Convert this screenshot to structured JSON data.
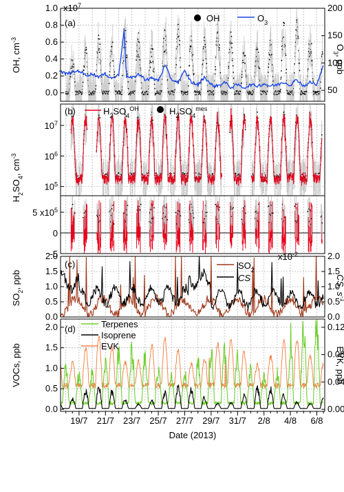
{
  "chart_data": [
    {
      "id": "a",
      "type": "line",
      "panel_label": "(a)",
      "ylabel_left": "OH, cm",
      "ylabel_left_exp": "-3",
      "ylabel_right": "O",
      "ylabel_right_sub": "3",
      "ylabel_right_unit": ", ppb",
      "multiplier_left": "x10",
      "multiplier_left_exp": "7",
      "ylim_left": [
        -0.1,
        1.0
      ],
      "ylim_right": [
        30,
        200
      ],
      "yticks_left": [
        "0.0",
        "0.2",
        "0.4",
        "0.6",
        "0.8",
        "1.0"
      ],
      "yticks_right": [
        "50",
        "100",
        "150",
        "200"
      ],
      "legend": [
        {
          "name": "OH",
          "marker": "dot",
          "color": "#000000"
        },
        {
          "name": "O",
          "sub": "3",
          "marker": "line",
          "color": "#1a47e6"
        }
      ],
      "series": [
        {
          "name": "OH",
          "axis": "left",
          "style": "dots",
          "color": "#000000",
          "peaks": [
            0.35,
            0.45,
            0.6,
            0.55,
            0.65,
            0.6,
            0.5,
            0.65,
            0.7,
            0.6,
            0.55,
            0.7,
            0.6,
            0.45,
            0.5,
            0.55,
            0.7,
            0.75,
            0.6,
            0.5
          ]
        },
        {
          "name": "O3",
          "axis": "right",
          "style": "line",
          "color": "#1a47e6",
          "x": [
            17.5,
            18,
            18.5,
            19,
            19.5,
            20,
            20.5,
            21,
            21.5,
            22,
            22.4,
            22.6,
            23,
            23.5,
            24,
            24.5,
            25,
            25.5,
            26,
            26.5,
            27,
            27.5,
            28,
            28.5,
            29,
            29.5,
            30,
            30.5,
            31,
            31.5,
            32,
            32.5,
            33,
            33.5,
            34,
            34.5,
            35,
            35.5,
            36,
            36.5,
            37,
            37.5
          ],
          "values": [
            85,
            80,
            83,
            86,
            78,
            80,
            75,
            80,
            72,
            78,
            160,
            75,
            72,
            80,
            70,
            72,
            68,
            95,
            70,
            65,
            85,
            65,
            60,
            75,
            60,
            58,
            65,
            55,
            60,
            55,
            60,
            58,
            62,
            58,
            60,
            65,
            60,
            70,
            58,
            65,
            60,
            95
          ]
        }
      ]
    },
    {
      "id": "b",
      "type": "line",
      "panel_label": "(b)",
      "ylabel_left": "H",
      "ylabel_left_parts": [
        "H",
        "2",
        "SO",
        "4",
        ", cm",
        "-3"
      ],
      "yscale_upper": "log",
      "ylim_upper": [
        50000,
        50000000
      ],
      "yticks_upper": [
        "10",
        "10",
        "10"
      ],
      "yticks_upper_exp": [
        "7",
        "6",
        "5"
      ],
      "ylim_lower": [
        -500000,
        900000
      ],
      "yticks_lower": [
        "5 x10",
        "0",
        "-5"
      ],
      "yticks_lower_exp": "5",
      "legend": [
        {
          "name": "H",
          "parts": [
            "H",
            "2",
            "SO",
            "4",
            "OH"
          ],
          "marker": "line",
          "color": "#e8001a"
        },
        {
          "name": "H",
          "parts": [
            "H",
            "2",
            "SO",
            "4",
            "mes"
          ],
          "marker": "dot",
          "color": "#000000"
        }
      ],
      "series": [
        {
          "name": "H2SO4_OH",
          "style": "line",
          "color": "#e8001a"
        },
        {
          "name": "H2SO4_mes",
          "style": "dots",
          "color": "#000000"
        }
      ]
    },
    {
      "id": "c",
      "type": "line",
      "panel_label": "(c)",
      "ylabel_left": "SO",
      "ylabel_left_sub": "2",
      "ylabel_left_unit": ", ppb",
      "ylabel_right": "CS",
      "ylabel_right_unit": ", s",
      "ylabel_right_exp": "-1",
      "multiplier_right": "x10",
      "multiplier_right_exp": "-2",
      "ylim_left": [
        0,
        2.0
      ],
      "ylim_right": [
        0,
        2.0
      ],
      "yticks_left": [
        "0.0",
        "0.5",
        "1.0",
        "1.5",
        "2.0"
      ],
      "yticks_right": [
        "0.0",
        "0.5",
        "1.0",
        "1.5",
        "2.0"
      ],
      "legend": [
        {
          "name": "SO",
          "sub": "2",
          "marker": "line",
          "color": "#a0381a"
        },
        {
          "name": "CS",
          "marker": "line",
          "color": "#000000"
        }
      ],
      "series": [
        {
          "name": "SO2",
          "axis": "left",
          "style": "line",
          "color": "#a0381a"
        },
        {
          "name": "CS",
          "axis": "right",
          "style": "line",
          "color": "#000000"
        }
      ]
    },
    {
      "id": "d",
      "type": "line",
      "panel_label": "(d)",
      "ylabel_left": "VOCs, ppb",
      "ylabel_right": "EVK, ppb",
      "ylim_left": [
        -0.05,
        2.2
      ],
      "ylim_right": [
        -0.003,
        0.132
      ],
      "yticks_left": [
        "0.0",
        "0.5",
        "1.0",
        "1.5",
        "2.0"
      ],
      "yticks_right": [
        "0.00",
        "0.04",
        "0.08",
        "0.12"
      ],
      "legend": [
        {
          "name": "Terpenes",
          "marker": "line",
          "color": "#6ecf2e"
        },
        {
          "name": "Isoprene",
          "marker": "line",
          "color": "#000000"
        },
        {
          "name": "EVK",
          "marker": "line",
          "color": "#f2864a"
        }
      ],
      "series": [
        {
          "name": "Terpenes",
          "axis": "left",
          "style": "line",
          "color": "#6ecf2e"
        },
        {
          "name": "Isoprene",
          "axis": "left",
          "style": "line",
          "color": "#000000"
        },
        {
          "name": "EVK",
          "axis": "right",
          "style": "line",
          "color": "#f2864a"
        }
      ]
    }
  ],
  "x_axis": {
    "label": "Date (2013)",
    "xlim": [
      17.6,
      37.6
    ],
    "ticks": [
      {
        "x": 19,
        "label": "19/7"
      },
      {
        "x": 21,
        "label": "21/7"
      },
      {
        "x": 23,
        "label": "23/7"
      },
      {
        "x": 25,
        "label": "25/7"
      },
      {
        "x": 27,
        "label": "27/7"
      },
      {
        "x": 29,
        "label": "29/7"
      },
      {
        "x": 31,
        "label": "31/7"
      },
      {
        "x": 33,
        "label": "2/8"
      },
      {
        "x": 35,
        "label": "4/8"
      },
      {
        "x": 37,
        "label": "6/8"
      }
    ]
  },
  "colors": {
    "o3": "#1a47e6",
    "h2so4_oh": "#e8001a",
    "so2": "#a0381a",
    "terpenes": "#6ecf2e",
    "evk": "#f2864a"
  }
}
